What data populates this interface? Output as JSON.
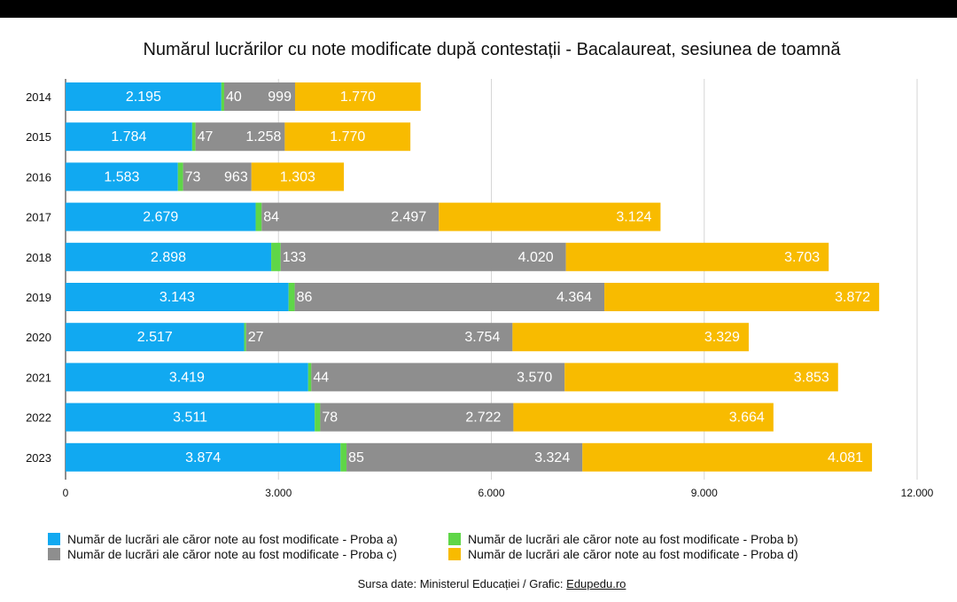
{
  "chart_data": {
    "type": "bar",
    "orientation": "horizontal",
    "stacked": true,
    "title": "Numărul lucrărilor cu note modificate după contestații - Bacalaureat, sesiunea de toamnă",
    "categories": [
      "2014",
      "2015",
      "2016",
      "2017",
      "2018",
      "2019",
      "2020",
      "2021",
      "2022",
      "2023"
    ],
    "series": [
      {
        "name": "Număr de lucrări ale căror note au fost modificate - Proba a)",
        "color": "#11a9f1",
        "values": [
          2195,
          1784,
          1583,
          2679,
          2898,
          3143,
          2517,
          3419,
          3511,
          3874
        ],
        "labels": [
          "2.195",
          "1.784",
          "1.583",
          "2.679",
          "2.898",
          "3.143",
          "2.517",
          "3.419",
          "3.511",
          "3.874"
        ]
      },
      {
        "name": "Număr de lucrări ale căror note au fost modificate -  Proba b)",
        "color": "#5fd648",
        "values": [
          40,
          47,
          73,
          84,
          133,
          86,
          27,
          44,
          78,
          85
        ],
        "labels": [
          "40",
          "47",
          "73",
          "84",
          "133",
          "86",
          "27",
          "44",
          "78",
          "85"
        ]
      },
      {
        "name": "Număr de lucrări ale căror note au fost modificate - Proba c)",
        "color": "#8e8e8e",
        "values": [
          999,
          1258,
          963,
          2497,
          4020,
          4364,
          3754,
          3570,
          2722,
          3324
        ],
        "labels": [
          "999",
          "1.258",
          "963",
          "2.497",
          "4.020",
          "4.364",
          "3.754",
          "3.570",
          "2.722",
          "3.324"
        ]
      },
      {
        "name": "Număr de lucrări ale căror note au fost modificate -  Proba d)",
        "color": "#f8bb00",
        "values": [
          1770,
          1770,
          1303,
          3124,
          3703,
          3872,
          3329,
          3853,
          3664,
          4081
        ],
        "labels": [
          "1.770",
          "1.770",
          "1.303",
          "3.124",
          "3.703",
          "3.872",
          "3.329",
          "3.853",
          "3.664",
          "4.081"
        ]
      }
    ],
    "xlim": [
      0,
      12000
    ],
    "xticks": [
      0,
      3000,
      6000,
      9000,
      12000
    ],
    "xtick_labels": [
      "0",
      "3.000",
      "6.000",
      "9.000",
      "12.000"
    ],
    "grid": true,
    "legend_position": "bottom"
  },
  "source": {
    "text": "Sursa date: Ministerul Educației / Grafic: ",
    "link": "Edupedu.ro"
  }
}
